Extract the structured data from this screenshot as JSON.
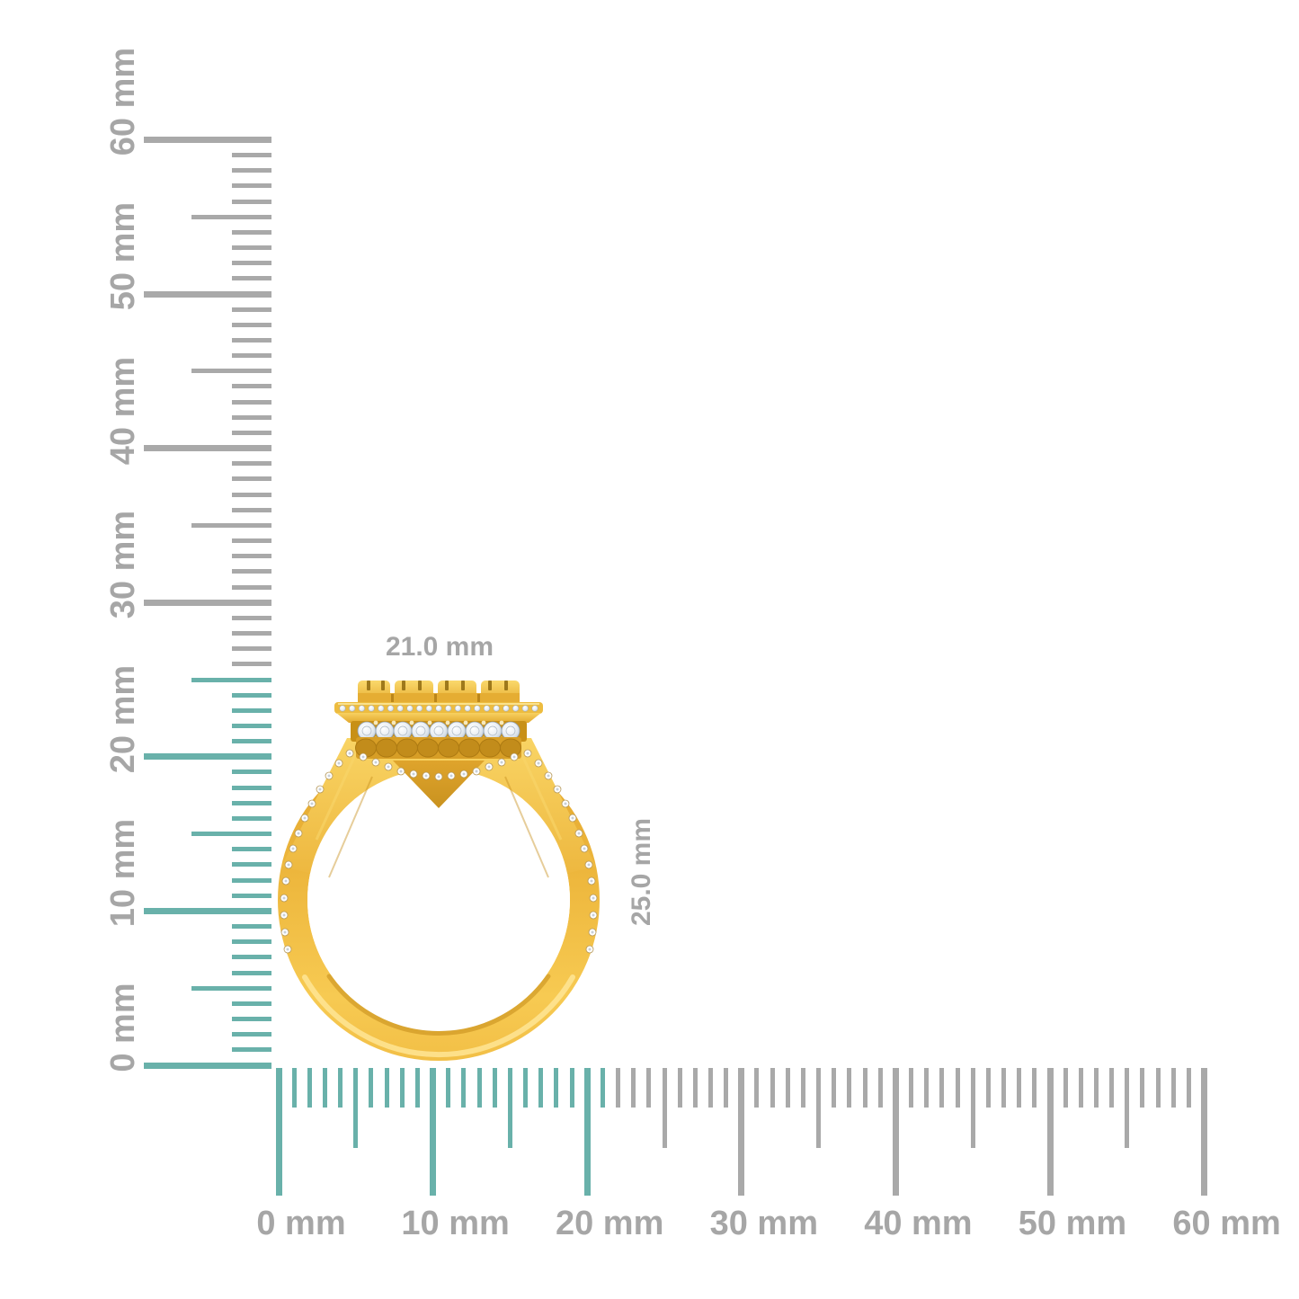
{
  "annotations": {
    "width_label": "21.0 mm",
    "height_label": "25.0 mm"
  },
  "rulers": {
    "unit": "mm",
    "max_mm": 60,
    "minor_step_mm": 1,
    "medium_step_mm": 5,
    "major_step_mm": 10,
    "horizontal": {
      "highlight_to_mm": 21,
      "labels": [
        {
          "mm": 0,
          "text": "0 mm"
        },
        {
          "mm": 10,
          "text": "10 mm"
        },
        {
          "mm": 20,
          "text": "20 mm"
        },
        {
          "mm": 30,
          "text": "30 mm"
        },
        {
          "mm": 40,
          "text": "40 mm"
        },
        {
          "mm": 50,
          "text": "50 mm"
        },
        {
          "mm": 60,
          "text": "60 mm"
        }
      ]
    },
    "vertical": {
      "highlight_to_mm": 25,
      "labels": [
        {
          "mm": 0,
          "text": "0 mm"
        },
        {
          "mm": 10,
          "text": "10 mm"
        },
        {
          "mm": 20,
          "text": "20 mm"
        },
        {
          "mm": 30,
          "text": "30 mm"
        },
        {
          "mm": 40,
          "text": "40 mm"
        },
        {
          "mm": 50,
          "text": "50 mm"
        },
        {
          "mm": 60,
          "text": "60 mm"
        }
      ]
    }
  },
  "ring": {
    "description": "yellow gold diamond halo ring, side profile view",
    "head_diamond_count": 9,
    "halo_micro_diamond_count": 21,
    "shoulder_accent_diamond_count_per_side": 14,
    "under_head_accent_diamond_count": 13
  },
  "colors": {
    "highlight": "#69B1AA",
    "ruler": "#A9A9A9",
    "text": "#A6A6A6",
    "gold_light": "#F9D464",
    "gold_mid": "#F0BC41",
    "gold_dark": "#C9921F",
    "diamond": "#EFF3F7",
    "background": "#FFFFFF"
  }
}
